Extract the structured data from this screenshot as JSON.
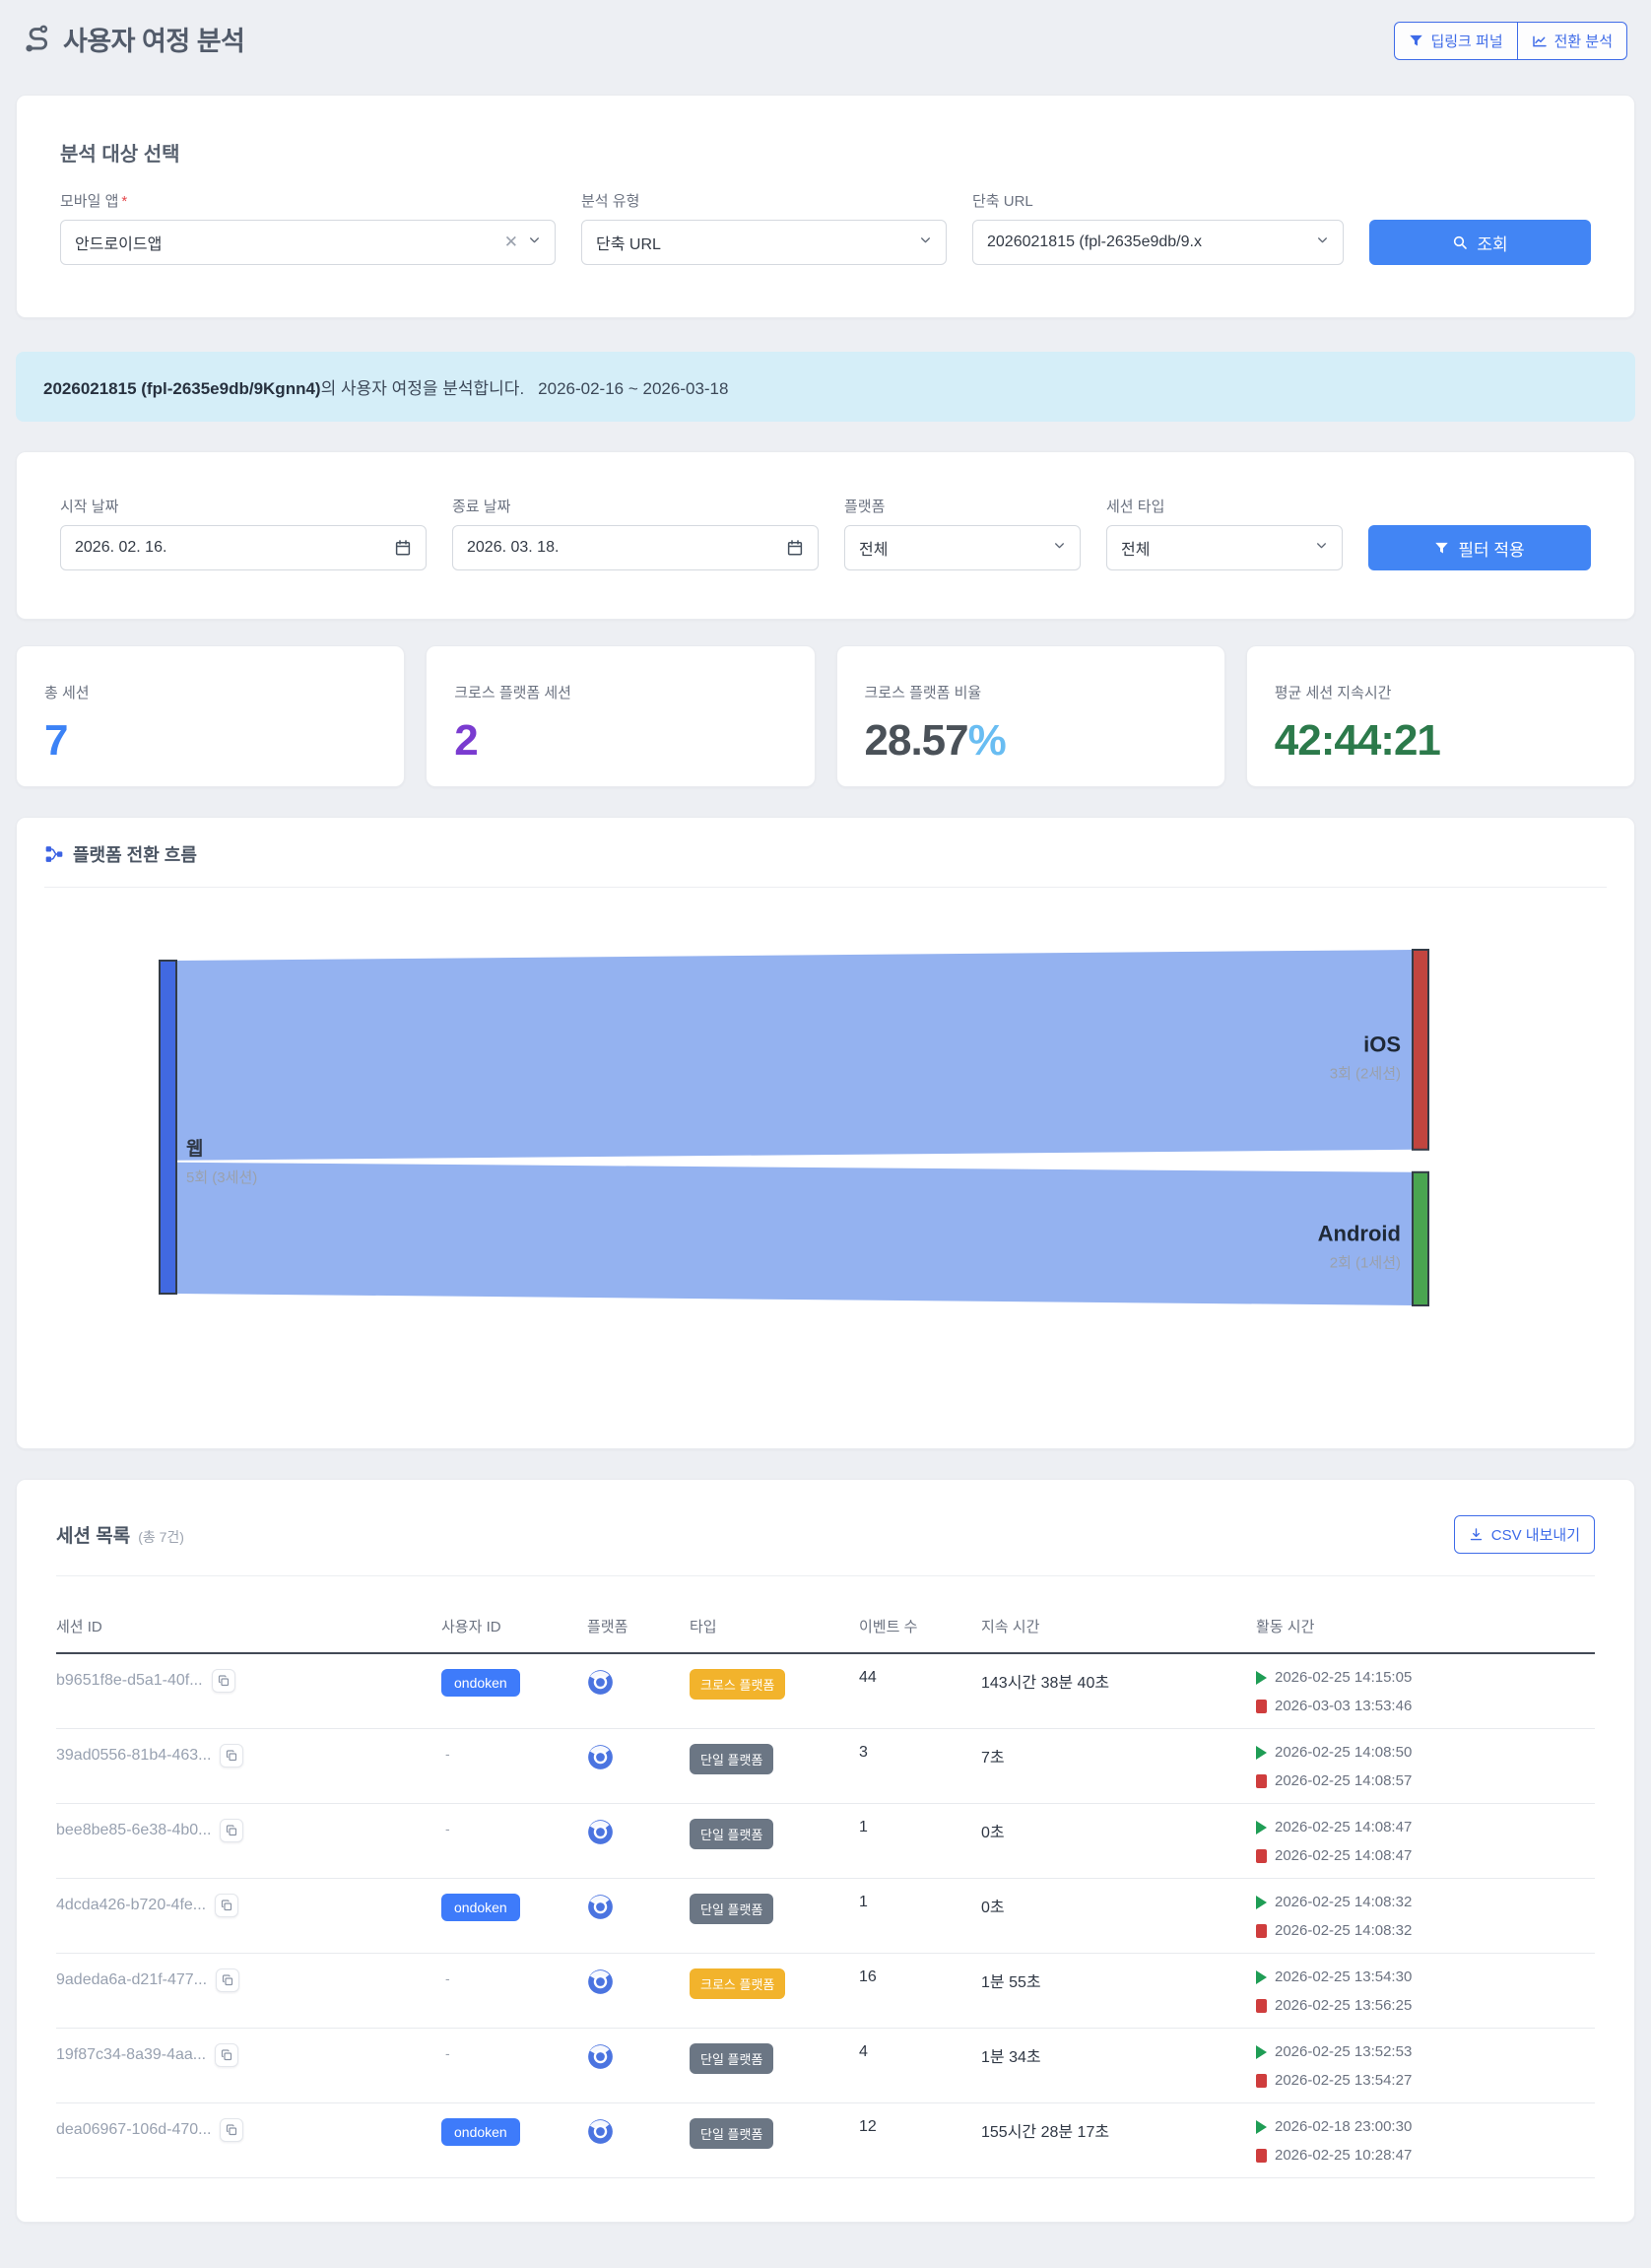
{
  "page": {
    "title": "사용자 여정 분석"
  },
  "header": {
    "deeplink_funnel_button": "딥링크 퍼널",
    "conversion_analysis_button": "전환 분석"
  },
  "icons": {
    "title": "route-icon",
    "deeplink": "funnel-icon",
    "conversion": "line-chart-icon",
    "search": "search-icon",
    "date": "calendar-icon",
    "filter": "funnel-icon",
    "sankey_header": "branch-flow-icon",
    "csv": "download-icon",
    "platform": "chrome-browser-icon",
    "copy": "copy-icon",
    "session_start": "play-icon",
    "session_end": "stop-icon"
  },
  "target_card": {
    "title": "분석 대상 선택",
    "app": {
      "label": "모바일 앱",
      "required_mark": "*",
      "value": "안드로이드앱"
    },
    "analysis_type": {
      "label": "분석 유형",
      "value": "단축 URL"
    },
    "short_url": {
      "label": "단축 URL",
      "value": "2026021815 (fpl-2635e9db/9.x"
    },
    "search_button": "조회"
  },
  "banner": {
    "highlight": "2026021815 (fpl-2635e9db/9Kgnn4)",
    "text": "의 사용자 여정을 분석합니다.",
    "range": "2026-02-16 ~ 2026-03-18"
  },
  "filter_card": {
    "start_date": {
      "label": "시작 날짜",
      "value": "2026. 02. 16."
    },
    "end_date": {
      "label": "종료 날짜",
      "value": "2026. 03. 18."
    },
    "platform": {
      "label": "플랫폼",
      "value": "전체"
    },
    "session_type": {
      "label": "세션 타입",
      "value": "전체"
    },
    "apply_button": "필터 적용"
  },
  "stats": [
    {
      "label": "총 세션",
      "value": "7",
      "color": "#3b82f6"
    },
    {
      "label": "크로스 플랫폼 세션",
      "value": "2",
      "color": "#7a3bd0"
    },
    {
      "label": "크로스 플랫폼 비율",
      "value": "28.57",
      "suffix": "%",
      "color": "#4a5158",
      "suffix_color": "#69bdf2"
    },
    {
      "label": "평균 세션 지속시간",
      "value": "42:44:21",
      "color": "#2c7a4b"
    }
  ],
  "sankey": {
    "title": "플랫폼 전환 흐름",
    "chart_data": {
      "type": "sankey",
      "nodes": [
        {
          "name": "웹",
          "sub": "5회 (3세션)",
          "value": 5,
          "color": "#4169e1",
          "side": "left"
        },
        {
          "name": "iOS",
          "sub": "3회 (2세션)",
          "value": 3,
          "color": "#c2453f",
          "side": "right"
        },
        {
          "name": "Android",
          "sub": "2회 (1세션)",
          "value": 2,
          "color": "#4aa550",
          "side": "right"
        }
      ],
      "links": [
        {
          "source": "웹",
          "target": "iOS",
          "value": 3
        },
        {
          "source": "웹",
          "target": "Android",
          "value": 2
        }
      ],
      "link_color": "#94b2f0",
      "node_border_color": "#333b46"
    }
  },
  "sessions": {
    "title": "세션 목록",
    "count_label": "(총 7건)",
    "csv_button": "CSV 내보내기",
    "columns": [
      "세션 ID",
      "사용자 ID",
      "플랫폼",
      "타입",
      "이벤트 수",
      "지속 시간",
      "활동 시간"
    ],
    "rows": [
      {
        "session_id": "b9651f8e-d5a1-40f...",
        "user_id": "ondoken",
        "type": "크로스 플랫폼",
        "type_kind": "cross",
        "events": "44",
        "duration": "143시간 38분 40초",
        "start": "2026-02-25 14:15:05",
        "end": "2026-03-03 13:53:46"
      },
      {
        "session_id": "39ad0556-81b4-463...",
        "user_id": "-",
        "type": "단일 플랫폼",
        "type_kind": "single",
        "events": "3",
        "duration": "7초",
        "start": "2026-02-25 14:08:50",
        "end": "2026-02-25 14:08:57"
      },
      {
        "session_id": "bee8be85-6e38-4b0...",
        "user_id": "-",
        "type": "단일 플랫폼",
        "type_kind": "single",
        "events": "1",
        "duration": "0초",
        "start": "2026-02-25 14:08:47",
        "end": "2026-02-25 14:08:47"
      },
      {
        "session_id": "4dcda426-b720-4fe...",
        "user_id": "ondoken",
        "type": "단일 플랫폼",
        "type_kind": "single",
        "events": "1",
        "duration": "0초",
        "start": "2026-02-25 14:08:32",
        "end": "2026-02-25 14:08:32"
      },
      {
        "session_id": "9adeda6a-d21f-477...",
        "user_id": "-",
        "type": "크로스 플랫폼",
        "type_kind": "cross",
        "events": "16",
        "duration": "1분 55초",
        "start": "2026-02-25 13:54:30",
        "end": "2026-02-25 13:56:25"
      },
      {
        "session_id": "19f87c34-8a39-4aa...",
        "user_id": "-",
        "type": "단일 플랫폼",
        "type_kind": "single",
        "events": "4",
        "duration": "1분 34초",
        "start": "2026-02-25 13:52:53",
        "end": "2026-02-25 13:54:27"
      },
      {
        "session_id": "dea06967-106d-470...",
        "user_id": "ondoken",
        "type": "단일 플랫폼",
        "type_kind": "single",
        "events": "12",
        "duration": "155시간 28분 17초",
        "start": "2026-02-18 23:00:30",
        "end": "2026-02-25 10:28:47"
      }
    ]
  }
}
